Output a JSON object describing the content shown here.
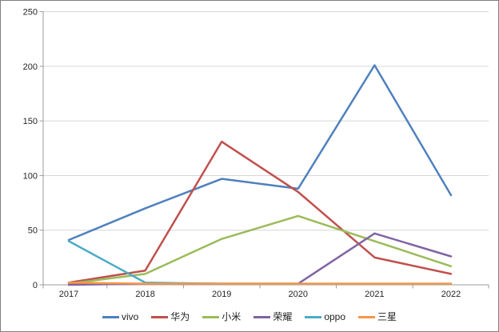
{
  "chart_data": {
    "type": "line",
    "title": "",
    "xlabel": "",
    "ylabel": "",
    "categories": [
      "2017",
      "2018",
      "2019",
      "2020",
      "2021",
      "2022"
    ],
    "series": [
      {
        "name": "vivo",
        "color": "#4F81BD",
        "values": [
          41,
          70,
          97,
          88,
          201,
          82
        ]
      },
      {
        "name": "华为",
        "color": "#C0504D",
        "values": [
          2,
          13,
          131,
          85,
          25,
          10
        ]
      },
      {
        "name": "小米",
        "color": "#9BBB59",
        "values": [
          1,
          10,
          42,
          63,
          40,
          17
        ]
      },
      {
        "name": "荣耀",
        "color": "#8064A2",
        "values": [
          0,
          1,
          1,
          1,
          47,
          26
        ]
      },
      {
        "name": "oppo",
        "color": "#4BACC6",
        "values": [
          40,
          2,
          1,
          1,
          1,
          1
        ]
      },
      {
        "name": "三星",
        "color": "#F79646",
        "values": [
          2,
          1,
          1,
          1,
          1,
          1
        ]
      }
    ],
    "y_axis": {
      "min": 0,
      "max": 250,
      "tick_interval": 50,
      "tick_labels": [
        "0",
        "50",
        "100",
        "150",
        "200",
        "250"
      ]
    },
    "grid": "horizontal",
    "legend_position": "bottom",
    "colors": {
      "axis_line": "#9b9b9b",
      "gridline": "#d6d6d6",
      "tick_label": "#262626",
      "legend_text": "#1f1f1f",
      "background": "#ffffff",
      "frame_border": "#7f7f7f"
    }
  }
}
